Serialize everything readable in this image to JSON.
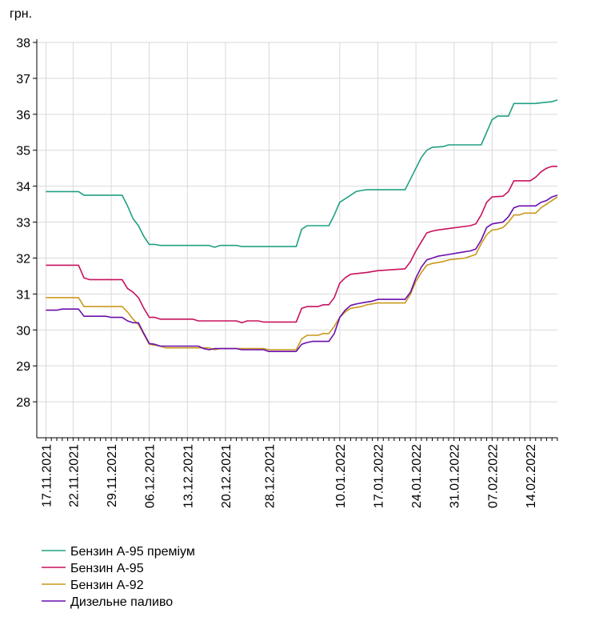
{
  "chart_data": {
    "type": "line",
    "title": "",
    "unit_label": "грн.",
    "ylim": [
      27,
      38
    ],
    "yticks": [
      28,
      29,
      30,
      31,
      32,
      33,
      34,
      35,
      36,
      37,
      38
    ],
    "xlim": [
      "2021-11-17",
      "2022-02-19"
    ],
    "xticks": [
      "17.11.2021",
      "22.11.2021",
      "29.11.2021",
      "06.12.2021",
      "13.12.2021",
      "20.12.2021",
      "28.12.2021",
      "10.01.2022",
      "17.01.2022",
      "24.01.2022",
      "31.01.2022",
      "07.02.2022",
      "14.02.2022"
    ],
    "grid": true,
    "legend_position": "bottom-left",
    "series": [
      {
        "name": "Бензин А-95 преміум",
        "color": "#20a083",
        "points": [
          [
            "2021-11-17",
            33.85
          ],
          [
            "2021-11-23",
            33.85
          ],
          [
            "2021-11-24",
            33.75
          ],
          [
            "2021-11-30",
            33.75
          ],
          [
            "2021-12-01",
            33.75
          ],
          [
            "2021-12-02",
            33.45
          ],
          [
            "2021-12-03",
            33.1
          ],
          [
            "2021-12-04",
            32.9
          ],
          [
            "2021-12-05",
            32.6
          ],
          [
            "2021-12-06",
            32.38
          ],
          [
            "2021-12-07",
            32.38
          ],
          [
            "2021-12-08",
            32.35
          ],
          [
            "2021-12-17",
            32.35
          ],
          [
            "2021-12-18",
            32.3
          ],
          [
            "2021-12-19",
            32.35
          ],
          [
            "2021-12-22",
            32.35
          ],
          [
            "2021-12-23",
            32.32
          ],
          [
            "2022-01-01",
            32.32
          ],
          [
            "2022-01-02",
            32.32
          ],
          [
            "2022-01-03",
            32.8
          ],
          [
            "2022-01-04",
            32.9
          ],
          [
            "2022-01-08",
            32.9
          ],
          [
            "2022-01-09",
            33.2
          ],
          [
            "2022-01-10",
            33.55
          ],
          [
            "2022-01-12",
            33.75
          ],
          [
            "2022-01-13",
            33.85
          ],
          [
            "2022-01-14",
            33.88
          ],
          [
            "2022-01-15",
            33.9
          ],
          [
            "2022-01-22",
            33.9
          ],
          [
            "2022-01-23",
            34.2
          ],
          [
            "2022-01-24",
            34.5
          ],
          [
            "2022-01-25",
            34.8
          ],
          [
            "2022-01-26",
            35.0
          ],
          [
            "2022-01-27",
            35.08
          ],
          [
            "2022-01-29",
            35.1
          ],
          [
            "2022-01-30",
            35.15
          ],
          [
            "2022-02-05",
            35.15
          ],
          [
            "2022-02-06",
            35.5
          ],
          [
            "2022-02-07",
            35.85
          ],
          [
            "2022-02-08",
            35.95
          ],
          [
            "2022-02-10",
            35.95
          ],
          [
            "2022-02-11",
            36.3
          ],
          [
            "2022-02-15",
            36.3
          ],
          [
            "2022-02-16",
            36.32
          ],
          [
            "2022-02-18",
            36.35
          ],
          [
            "2022-02-19",
            36.4
          ]
        ]
      },
      {
        "name": "Бензин А-95",
        "color": "#c8115f",
        "points": [
          [
            "2021-11-17",
            31.8
          ],
          [
            "2021-11-23",
            31.8
          ],
          [
            "2021-11-24",
            31.45
          ],
          [
            "2021-11-25",
            31.4
          ],
          [
            "2021-12-01",
            31.4
          ],
          [
            "2021-12-02",
            31.15
          ],
          [
            "2021-12-03",
            31.05
          ],
          [
            "2021-12-04",
            30.9
          ],
          [
            "2021-12-05",
            30.6
          ],
          [
            "2021-12-06",
            30.35
          ],
          [
            "2021-12-07",
            30.35
          ],
          [
            "2021-12-08",
            30.3
          ],
          [
            "2021-12-14",
            30.3
          ],
          [
            "2021-12-15",
            30.25
          ],
          [
            "2021-12-20",
            30.25
          ],
          [
            "2021-12-22",
            30.25
          ],
          [
            "2021-12-23",
            30.2
          ],
          [
            "2021-12-24",
            30.25
          ],
          [
            "2021-12-26",
            30.25
          ],
          [
            "2021-12-27",
            30.22
          ],
          [
            "2022-01-02",
            30.22
          ],
          [
            "2022-01-03",
            30.6
          ],
          [
            "2022-01-04",
            30.65
          ],
          [
            "2022-01-06",
            30.65
          ],
          [
            "2022-01-07",
            30.7
          ],
          [
            "2022-01-08",
            30.7
          ],
          [
            "2022-01-09",
            30.9
          ],
          [
            "2022-01-10",
            31.3
          ],
          [
            "2022-01-11",
            31.45
          ],
          [
            "2022-01-12",
            31.55
          ],
          [
            "2022-01-15",
            31.6
          ],
          [
            "2022-01-17",
            31.65
          ],
          [
            "2022-01-22",
            31.7
          ],
          [
            "2022-01-23",
            31.9
          ],
          [
            "2022-01-24",
            32.2
          ],
          [
            "2022-01-25",
            32.45
          ],
          [
            "2022-01-26",
            32.7
          ],
          [
            "2022-01-27",
            32.75
          ],
          [
            "2022-01-28",
            32.78
          ],
          [
            "2022-01-30",
            32.82
          ],
          [
            "2022-02-03",
            32.9
          ],
          [
            "2022-02-04",
            32.95
          ],
          [
            "2022-02-05",
            33.2
          ],
          [
            "2022-02-06",
            33.55
          ],
          [
            "2022-02-07",
            33.7
          ],
          [
            "2022-02-09",
            33.72
          ],
          [
            "2022-02-10",
            33.85
          ],
          [
            "2022-02-11",
            34.15
          ],
          [
            "2022-02-14",
            34.15
          ],
          [
            "2022-02-15",
            34.25
          ],
          [
            "2022-02-16",
            34.4
          ],
          [
            "2022-02-17",
            34.5
          ],
          [
            "2022-02-18",
            34.55
          ],
          [
            "2022-02-19",
            34.55
          ]
        ]
      },
      {
        "name": "Бензин А-92",
        "color": "#c9981c",
        "points": [
          [
            "2021-11-17",
            30.9
          ],
          [
            "2021-11-23",
            30.9
          ],
          [
            "2021-11-24",
            30.65
          ],
          [
            "2021-12-01",
            30.65
          ],
          [
            "2021-12-02",
            30.5
          ],
          [
            "2021-12-03",
            30.3
          ],
          [
            "2021-12-04",
            30.15
          ],
          [
            "2021-12-06",
            29.6
          ],
          [
            "2021-12-08",
            29.55
          ],
          [
            "2021-12-09",
            29.5
          ],
          [
            "2021-12-17",
            29.5
          ],
          [
            "2021-12-18",
            29.45
          ],
          [
            "2021-12-19",
            29.48
          ],
          [
            "2021-12-27",
            29.48
          ],
          [
            "2021-12-28",
            29.45
          ],
          [
            "2022-01-02",
            29.45
          ],
          [
            "2022-01-03",
            29.75
          ],
          [
            "2022-01-04",
            29.85
          ],
          [
            "2022-01-06",
            29.85
          ],
          [
            "2022-01-07",
            29.9
          ],
          [
            "2022-01-08",
            29.9
          ],
          [
            "2022-01-09",
            30.1
          ],
          [
            "2022-01-10",
            30.35
          ],
          [
            "2022-01-11",
            30.5
          ],
          [
            "2022-01-12",
            30.6
          ],
          [
            "2022-01-14",
            30.65
          ],
          [
            "2022-01-15",
            30.7
          ],
          [
            "2022-01-17",
            30.75
          ],
          [
            "2022-01-22",
            30.75
          ],
          [
            "2022-01-23",
            31.0
          ],
          [
            "2022-01-24",
            31.35
          ],
          [
            "2022-01-25",
            31.6
          ],
          [
            "2022-01-26",
            31.8
          ],
          [
            "2022-01-27",
            31.85
          ],
          [
            "2022-01-29",
            31.9
          ],
          [
            "2022-01-30",
            31.95
          ],
          [
            "2022-02-02",
            32.0
          ],
          [
            "2022-02-03",
            32.05
          ],
          [
            "2022-02-04",
            32.1
          ],
          [
            "2022-02-05",
            32.4
          ],
          [
            "2022-02-06",
            32.65
          ],
          [
            "2022-02-07",
            32.78
          ],
          [
            "2022-02-08",
            32.8
          ],
          [
            "2022-02-09",
            32.85
          ],
          [
            "2022-02-10",
            33.0
          ],
          [
            "2022-02-11",
            33.2
          ],
          [
            "2022-02-12",
            33.2
          ],
          [
            "2022-02-13",
            33.25
          ],
          [
            "2022-02-15",
            33.25
          ],
          [
            "2022-02-16",
            33.4
          ],
          [
            "2022-02-17",
            33.5
          ],
          [
            "2022-02-18",
            33.6
          ],
          [
            "2022-02-19",
            33.7
          ]
        ]
      },
      {
        "name": "Дизельне паливо",
        "color": "#6a0dad",
        "points": [
          [
            "2021-11-17",
            30.55
          ],
          [
            "2021-11-19",
            30.55
          ],
          [
            "2021-11-20",
            30.58
          ],
          [
            "2021-11-23",
            30.58
          ],
          [
            "2021-11-24",
            30.38
          ],
          [
            "2021-11-28",
            30.38
          ],
          [
            "2021-11-29",
            30.35
          ],
          [
            "2021-12-01",
            30.35
          ],
          [
            "2021-12-02",
            30.25
          ],
          [
            "2021-12-03",
            30.2
          ],
          [
            "2021-12-04",
            30.2
          ],
          [
            "2021-12-05",
            29.9
          ],
          [
            "2021-12-06",
            29.62
          ],
          [
            "2021-12-07",
            29.6
          ],
          [
            "2021-12-08",
            29.55
          ],
          [
            "2021-12-15",
            29.55
          ],
          [
            "2021-12-16",
            29.48
          ],
          [
            "2021-12-17",
            29.45
          ],
          [
            "2021-12-18",
            29.48
          ],
          [
            "2021-12-22",
            29.48
          ],
          [
            "2021-12-23",
            29.45
          ],
          [
            "2021-12-27",
            29.45
          ],
          [
            "2021-12-28",
            29.4
          ],
          [
            "2022-01-02",
            29.4
          ],
          [
            "2022-01-03",
            29.6
          ],
          [
            "2022-01-04",
            29.65
          ],
          [
            "2022-01-05",
            29.68
          ],
          [
            "2022-01-08",
            29.68
          ],
          [
            "2022-01-09",
            29.9
          ],
          [
            "2022-01-10",
            30.35
          ],
          [
            "2022-01-11",
            30.55
          ],
          [
            "2022-01-12",
            30.68
          ],
          [
            "2022-01-13",
            30.72
          ],
          [
            "2022-01-14",
            30.75
          ],
          [
            "2022-01-16",
            30.8
          ],
          [
            "2022-01-17",
            30.85
          ],
          [
            "2022-01-22",
            30.85
          ],
          [
            "2022-01-23",
            31.05
          ],
          [
            "2022-01-24",
            31.45
          ],
          [
            "2022-01-25",
            31.75
          ],
          [
            "2022-01-26",
            31.95
          ],
          [
            "2022-01-27",
            32.0
          ],
          [
            "2022-01-28",
            32.05
          ],
          [
            "2022-01-30",
            32.1
          ],
          [
            "2022-02-01",
            32.15
          ],
          [
            "2022-02-03",
            32.2
          ],
          [
            "2022-02-04",
            32.25
          ],
          [
            "2022-02-05",
            32.5
          ],
          [
            "2022-02-06",
            32.85
          ],
          [
            "2022-02-07",
            32.95
          ],
          [
            "2022-02-09",
            33.0
          ],
          [
            "2022-02-10",
            33.15
          ],
          [
            "2022-02-11",
            33.4
          ],
          [
            "2022-02-12",
            33.45
          ],
          [
            "2022-02-15",
            33.45
          ],
          [
            "2022-02-16",
            33.55
          ],
          [
            "2022-02-17",
            33.6
          ],
          [
            "2022-02-18",
            33.7
          ],
          [
            "2022-02-19",
            33.75
          ]
        ]
      }
    ]
  }
}
